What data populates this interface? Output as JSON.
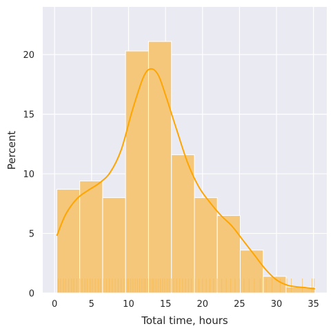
{
  "chart_data": {
    "type": "bar",
    "xlabel": "Total time, hours",
    "ylabel": "Percent",
    "xlim": [
      -1.6,
      36.8
    ],
    "ylim": [
      0,
      24
    ],
    "xticks": [
      0,
      5,
      10,
      15,
      20,
      25,
      30,
      35
    ],
    "yticks": [
      0,
      5,
      10,
      15,
      20
    ],
    "grid": true,
    "bins": [
      {
        "x0": 0.3,
        "x1": 3.4,
        "value": 8.7
      },
      {
        "x0": 3.4,
        "x1": 6.5,
        "value": 9.4
      },
      {
        "x0": 6.5,
        "x1": 9.6,
        "value": 8.0
      },
      {
        "x0": 9.6,
        "x1": 12.7,
        "value": 20.3
      },
      {
        "x0": 12.7,
        "x1": 15.8,
        "value": 21.1
      },
      {
        "x0": 15.8,
        "x1": 18.9,
        "value": 11.6
      },
      {
        "x0": 18.9,
        "x1": 22.0,
        "value": 8.0
      },
      {
        "x0": 22.0,
        "x1": 25.1,
        "value": 6.5
      },
      {
        "x0": 25.1,
        "x1": 28.2,
        "value": 3.6
      },
      {
        "x0": 28.2,
        "x1": 31.3,
        "value": 1.4
      },
      {
        "x0": 31.3,
        "x1": 35.2,
        "value": 0.5
      }
    ],
    "kde": {
      "x": [
        0.3,
        1.5,
        3,
        4.5,
        6,
        7.5,
        9,
        10.5,
        12,
        13,
        14,
        15,
        16.5,
        18,
        19.5,
        21,
        22.5,
        24,
        25.5,
        27,
        28.5,
        30,
        31.5,
        33,
        34,
        35.2
      ],
      "y": [
        4.8,
        6.6,
        7.9,
        8.6,
        9.2,
        10.1,
        12.0,
        15.3,
        18.1,
        18.8,
        18.3,
        16.6,
        13.7,
        10.9,
        8.9,
        7.6,
        6.5,
        5.6,
        4.4,
        3.2,
        2.0,
        1.1,
        0.65,
        0.5,
        0.45,
        0.35
      ]
    },
    "rug": [
      0.5,
      0.8,
      1.2,
      1.5,
      1.9,
      2.3,
      2.6,
      3.0,
      3.4,
      3.7,
      4.1,
      4.4,
      4.8,
      5.1,
      5.5,
      5.9,
      6.2,
      6.6,
      7.0,
      7.4,
      7.8,
      8.2,
      8.6,
      9.0,
      9.4,
      9.8,
      10.0,
      10.3,
      10.6,
      10.9,
      11.2,
      11.5,
      11.8,
      12.1,
      12.3,
      12.6,
      12.9,
      13.2,
      13.4,
      13.7,
      14.0,
      14.3,
      14.6,
      14.9,
      15.2,
      15.5,
      15.8,
      16.1,
      16.5,
      16.9,
      17.3,
      17.7,
      18.1,
      18.5,
      19.0,
      19.5,
      20.0,
      20.5,
      21.0,
      21.5,
      22.0,
      22.6,
      23.2,
      23.8,
      24.4,
      25.0,
      25.6,
      26.3,
      27.0,
      27.8,
      28.6,
      29.4,
      30.5,
      31.4,
      32.0,
      33.5,
      34.8,
      35.1
    ]
  },
  "colors": {
    "bar_fill": "#f5c77a",
    "bar_edge": "#ffffff",
    "kde_line": "#ffa500",
    "rug": "#f7b84a",
    "plot_bg": "#eaeaf2",
    "grid": "#ffffff"
  }
}
